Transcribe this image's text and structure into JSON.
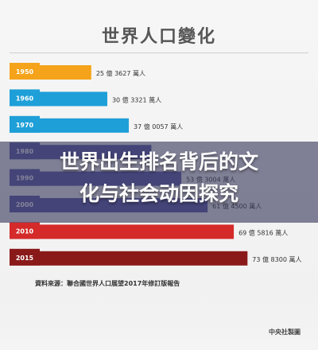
{
  "title": "世界人口變化",
  "banner": {
    "line1": "世界出生排名背后的文",
    "line2": "化与社会动因探究"
  },
  "source": "資料來源：聯合國世界人口展望2017年修訂版報告",
  "credit": "中央社製圖",
  "chart_data": {
    "type": "bar",
    "orientation": "horizontal",
    "title": "世界人口變化",
    "xlim": [
      0,
      80
    ],
    "categories": [
      "1950",
      "1960",
      "1970",
      "1980",
      "1990",
      "2000",
      "2010",
      "2015"
    ],
    "values": [
      25.3627,
      30.3321,
      37.0057,
      44.0,
      53.3004,
      61.45,
      69.5816,
      73.83
    ],
    "labels": [
      "25 億 3627 萬人",
      "30 億 3321 萬人",
      "37 億 0057 萬人",
      "",
      "53 億 3004 萬人",
      "61 億 4500 萬人",
      "69 億 5816 萬人",
      "73 億 8300 萬人"
    ],
    "colors": [
      "#f5a31a",
      "#1e9fd8",
      "#1e9fd8",
      "#5a5aa8",
      "#5a5aa8",
      "#5a5aa8",
      "#d42a2a",
      "#8a1a1a"
    ]
  }
}
